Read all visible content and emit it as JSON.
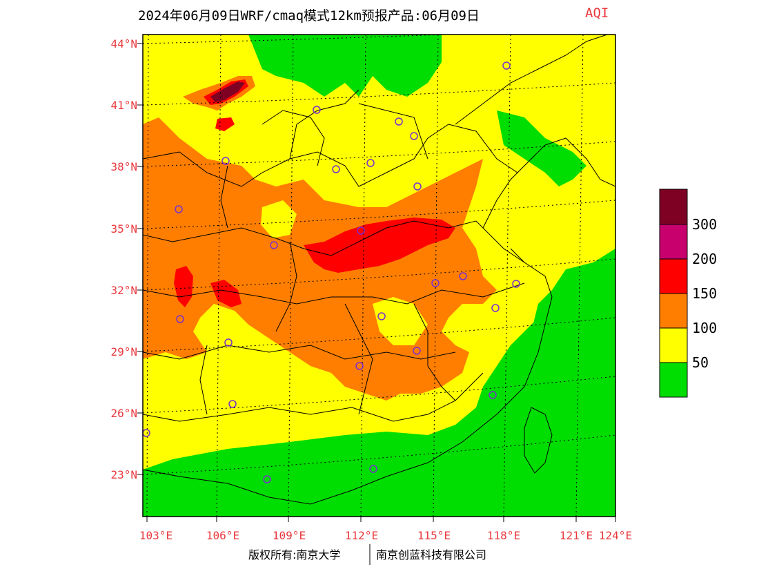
{
  "title": {
    "main": "2024年06月09日WRF/cmaq模式12km预报产品:06月09日",
    "variable": "AQI"
  },
  "map": {
    "lat_labels": [
      "44°N",
      "41°N",
      "38°N",
      "35°N",
      "32°N",
      "29°N",
      "26°N",
      "23°N"
    ],
    "lon_labels": [
      "103°E",
      "106°E",
      "109°E",
      "112°E",
      "115°E",
      "118°E",
      "121°E",
      "124°E"
    ]
  },
  "legend": {
    "levels": [
      "50",
      "100",
      "150",
      "200",
      "300"
    ],
    "colors": [
      "#00dd00",
      "#ffff00",
      "#ff7e00",
      "#ff0000",
      "#c8006e",
      "#7e0023"
    ]
  },
  "footer": {
    "left": "版权所有:南京大学",
    "right": "南京创蓝科技有限公司"
  }
}
